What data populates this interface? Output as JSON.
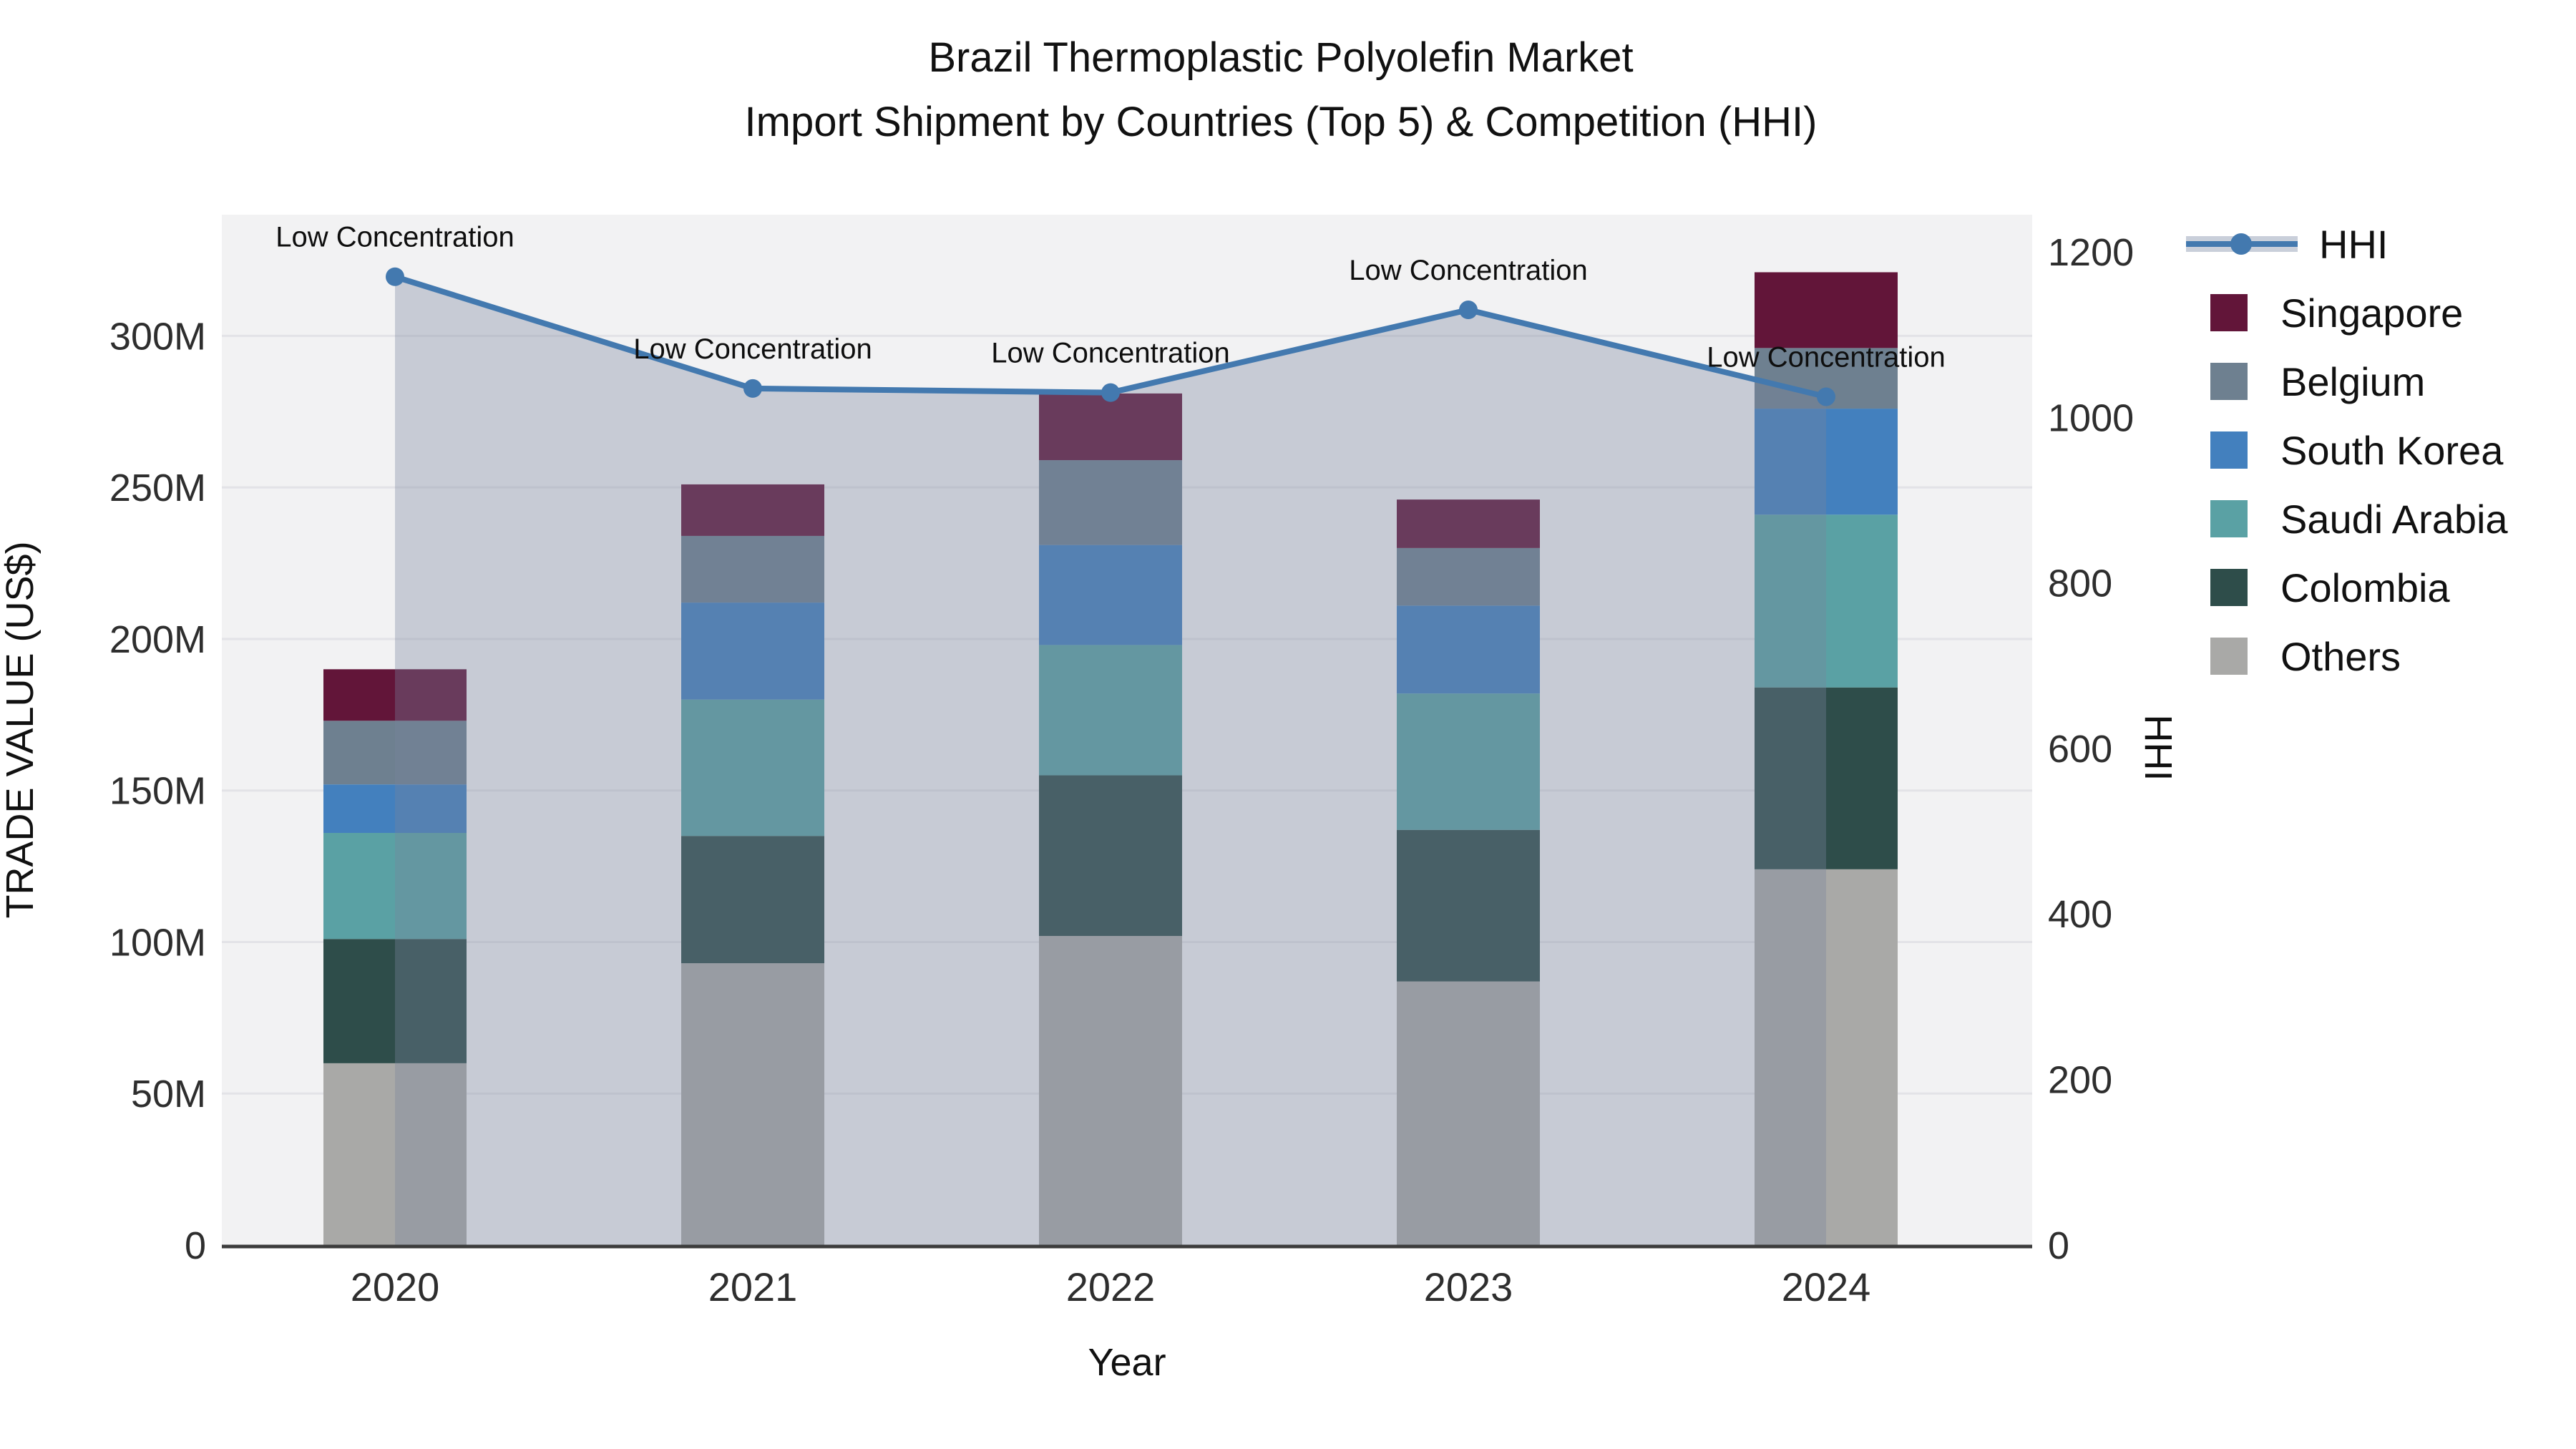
{
  "title": {
    "line1": "Brazil Thermoplastic Polyolefin Market",
    "line2": "Import Shipment by Countries (Top 5) & Competition (HHI)"
  },
  "colors": {
    "paper": "#ffffff",
    "plot_bg": "#f2f2f3",
    "grid": "#e3e3e7",
    "axis_line": "#3c3c3c",
    "tick_text": "#2e2e2e",
    "annotation_text": "#0e0e0e",
    "hhi_line": "#4379af",
    "hhi_fill": "rgba(121,132,159,0.35)",
    "hhi_legend_band": "#c9cfda"
  },
  "chart_data": {
    "type": "bar+line",
    "title": "Brazil Thermoplastic Polyolefin Market — Import Shipment by Countries (Top 5) & Competition (HHI)",
    "categories": [
      "2020",
      "2021",
      "2022",
      "2023",
      "2024"
    ],
    "stack_order_note": "series listed bottom to top of stack; values in million US$",
    "series": [
      {
        "name": "Others",
        "color": "#a9a9a7",
        "values": [
          60,
          93,
          102,
          87,
          124
        ]
      },
      {
        "name": "Colombia",
        "color": "#2e4d4a",
        "values": [
          41,
          42,
          53,
          50,
          60
        ]
      },
      {
        "name": "Saudi Arabia",
        "color": "#5aa1a4",
        "values": [
          35,
          45,
          43,
          45,
          57
        ]
      },
      {
        "name": "South Korea",
        "color": "#4380be",
        "values": [
          16,
          32,
          33,
          29,
          35
        ]
      },
      {
        "name": "Belgium",
        "color": "#6e8090",
        "values": [
          21,
          22,
          28,
          19,
          20
        ]
      },
      {
        "name": "Singapore",
        "color": "#621539",
        "values": [
          17,
          17,
          22,
          16,
          25
        ]
      }
    ],
    "bar_totals_musd": [
      190,
      251,
      281,
      246,
      321
    ],
    "line_series": {
      "name": "HHI",
      "color": "#4379af",
      "fill": "rgba(121,132,159,0.35)",
      "axis": "right",
      "values": [
        1170,
        1035,
        1030,
        1130,
        1025
      ]
    },
    "annotations": [
      {
        "x": "2020",
        "text": "Low Concentration"
      },
      {
        "x": "2021",
        "text": "Low Concentration"
      },
      {
        "x": "2022",
        "text": "Low Concentration"
      },
      {
        "x": "2023",
        "text": "Low Concentration"
      },
      {
        "x": "2024",
        "text": "Low Concentration"
      }
    ],
    "x_axis": {
      "label": "Year"
    },
    "left_axis": {
      "label": "TRADE VALUE (US$)",
      "tick_values_musd": [
        0,
        50,
        100,
        150,
        200,
        250,
        300
      ],
      "tick_labels": [
        "0",
        "50M",
        "100M",
        "150M",
        "200M",
        "250M",
        "300M"
      ],
      "range_musd": [
        0,
        340
      ],
      "grid": true
    },
    "right_axis": {
      "label": "HHI",
      "tick_values": [
        0,
        200,
        400,
        600,
        800,
        1000,
        1200
      ],
      "tick_labels": [
        "0",
        "200",
        "400",
        "600",
        "800",
        "1000",
        "1200"
      ],
      "range": [
        0,
        1245
      ],
      "grid": false
    },
    "legend_position": "top-right"
  },
  "legend": {
    "hhi_label": "HHI"
  }
}
